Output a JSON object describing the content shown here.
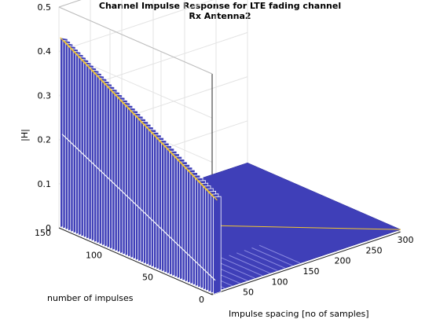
{
  "chart_data": {
    "type": "surface3d",
    "title": "Channel Impulse Response for LTE fading channel",
    "subtitle": "Rx Antenna2",
    "xlabel": "Impulse spacing [no of samples]",
    "ylabel": "number of impulses",
    "zlabel": "|H|",
    "xlim": [
      0,
      300
    ],
    "ylim": [
      0,
      150
    ],
    "zlim": [
      0,
      0.5
    ],
    "x_ticks": [
      "50",
      "100",
      "150",
      "200",
      "250",
      "300"
    ],
    "y_ticks": [
      "0",
      "50",
      "100",
      "150"
    ],
    "z_ticks": [
      "0",
      "0.1",
      "0.2",
      "0.3",
      "0.4",
      "0.5"
    ],
    "grid": true,
    "colormap": "parula",
    "surface_color": "#3f3fb8",
    "edge_color": "#2a2a9a",
    "highlight_color": "#f2c631",
    "ridge_curves": [
      {
        "x": 2,
        "values_vs_impulse": [
          {
            "y": 150,
            "z": 0.43
          },
          {
            "y": 0,
            "z": 0.22
          }
        ]
      },
      {
        "x": 8,
        "values_vs_impulse": [
          {
            "y": 150,
            "z": 0.42
          },
          {
            "y": 0,
            "z": 0.21
          }
        ]
      },
      {
        "x": 5,
        "values_vs_impulse": [
          {
            "y": 150,
            "z": 0.21
          },
          {
            "y": 0,
            "z": 0.03
          }
        ]
      }
    ],
    "tail": {
      "x_range": [
        15,
        300
      ],
      "value": 0.005
    }
  }
}
